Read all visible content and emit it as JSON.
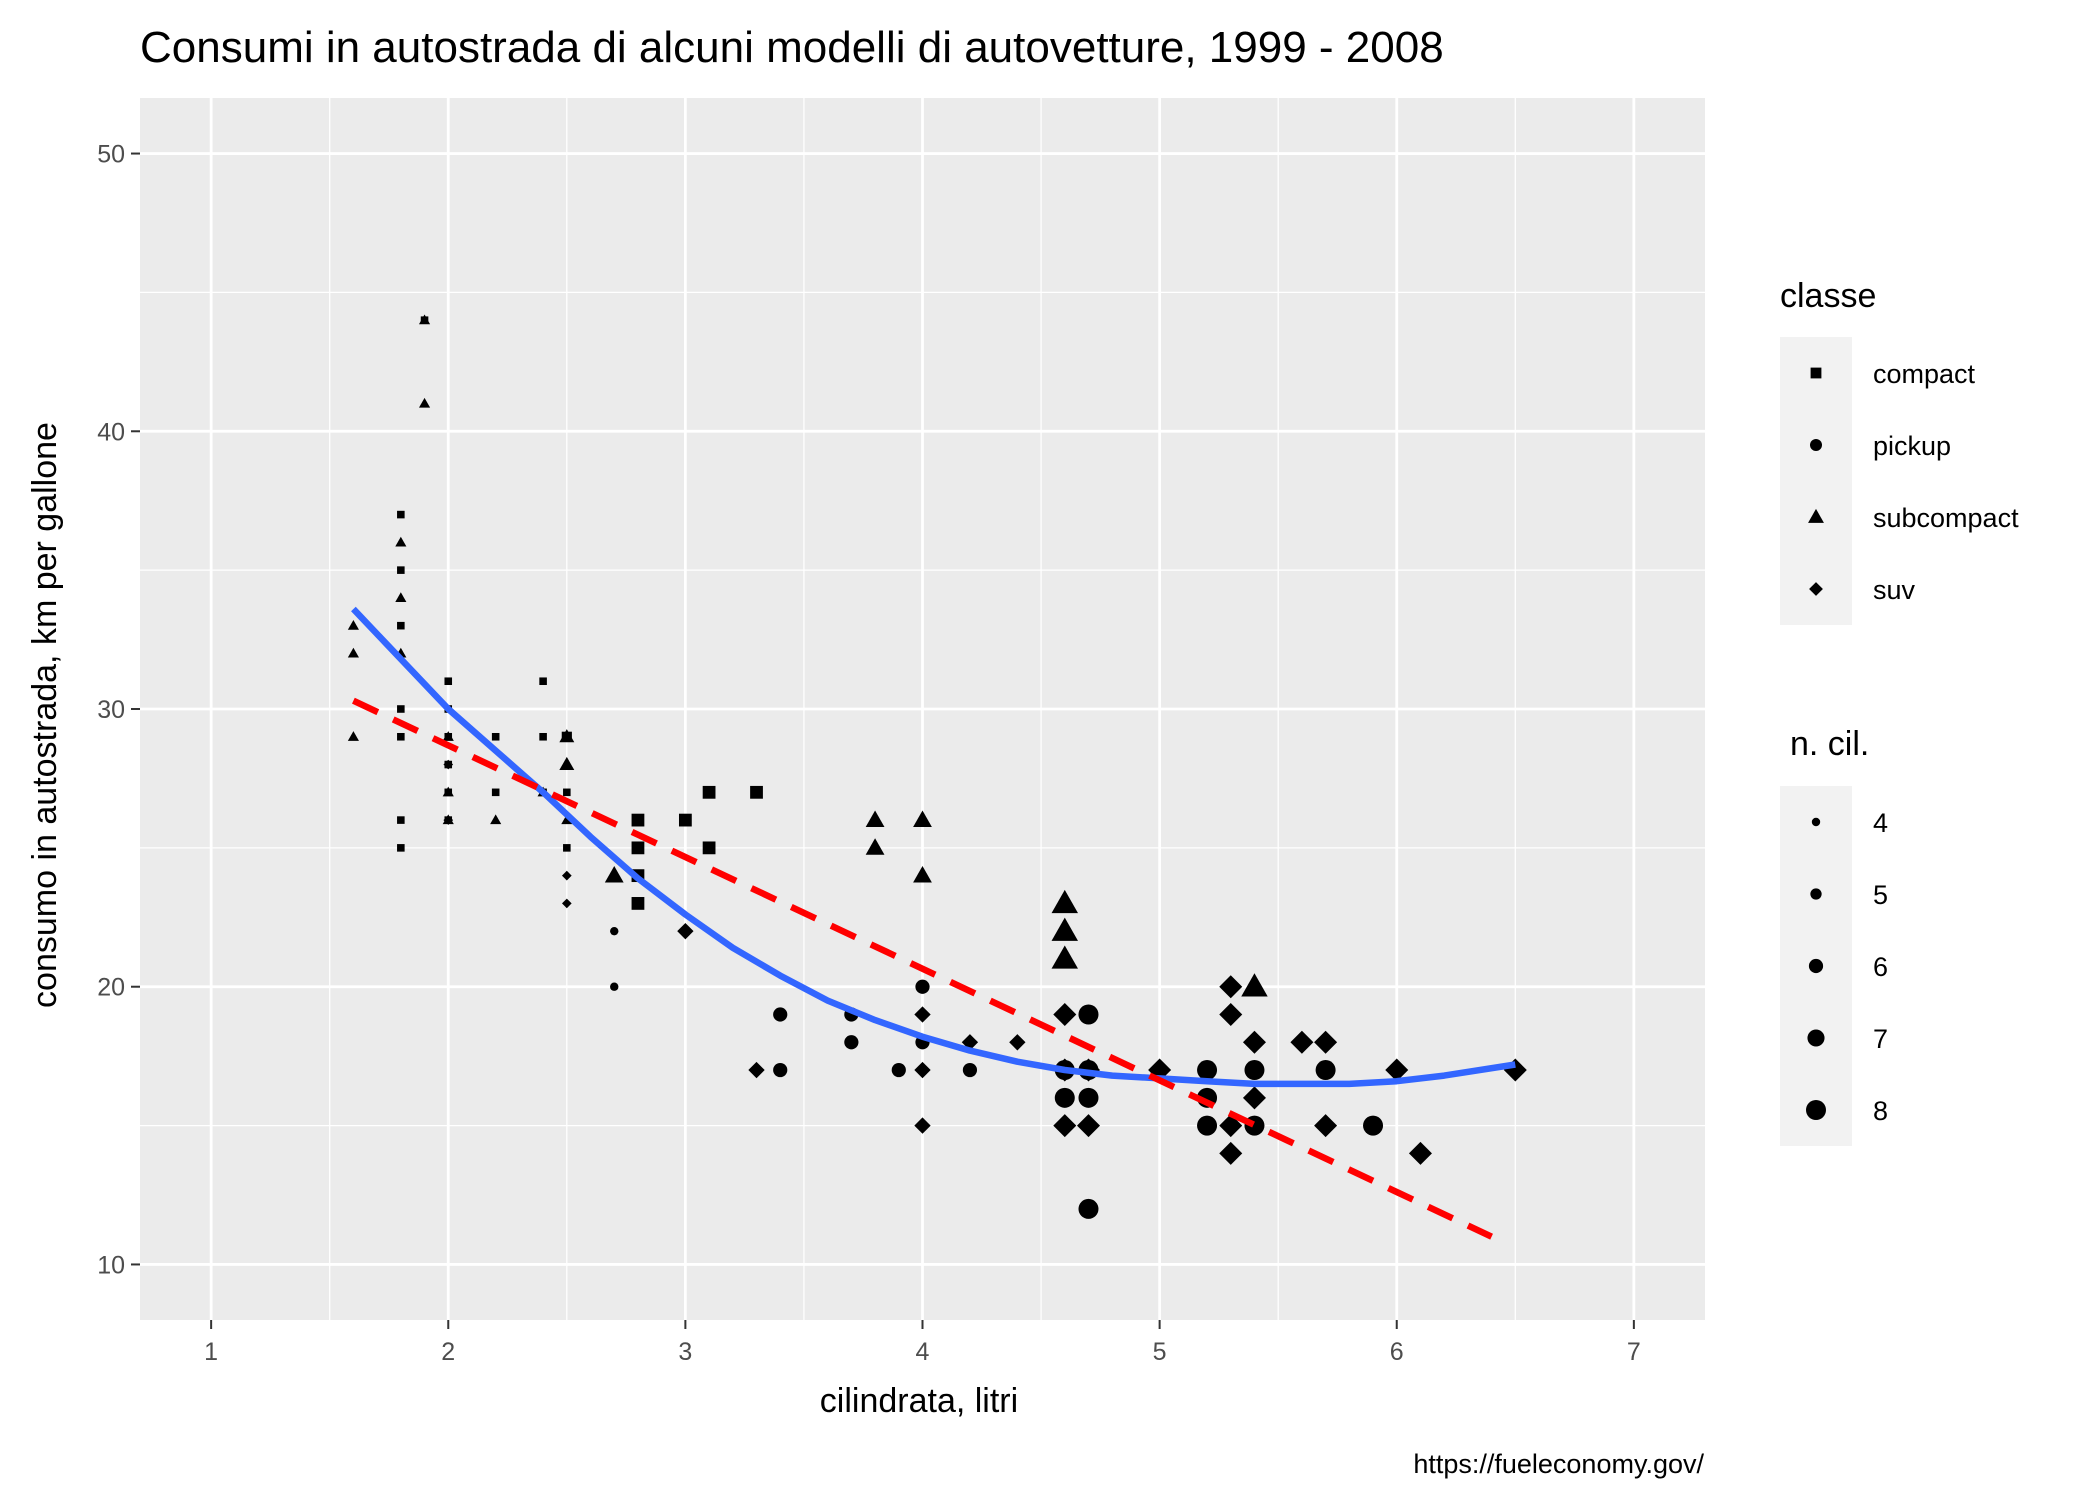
{
  "chart_data": {
    "type": "scatter",
    "title": "Consumi in autostrada di alcuni modelli di autovetture, 1999 - 2008",
    "xlabel": "cilindrata, litri",
    "ylabel": "consumo in autostrada, km per gallone",
    "caption": "https://fueleconomy.gov/",
    "xlim": [
      0.7,
      7.3
    ],
    "ylim": [
      8,
      52
    ],
    "x_ticks": [
      1,
      2,
      3,
      4,
      5,
      6,
      7
    ],
    "y_ticks": [
      10,
      20,
      30,
      40,
      50
    ],
    "grid": true,
    "legend_placement": "right",
    "colors": {
      "panel": "#EBEBEB",
      "grid": "#FFFFFF",
      "points": "#000000",
      "loess": "#3366FF",
      "linear": "#FF0000",
      "legend_key_bg": "#F2F2F2"
    },
    "legend_shape": {
      "title": "classe",
      "entries": [
        {
          "label": "compact",
          "shape": "square"
        },
        {
          "label": "pickup",
          "shape": "circle"
        },
        {
          "label": "subcompact",
          "shape": "triangle"
        },
        {
          "label": "suv",
          "shape": "diamond"
        }
      ]
    },
    "legend_size": {
      "title": "n. cil.",
      "entries": [
        {
          "label": "4",
          "cyl": 4
        },
        {
          "label": "5",
          "cyl": 5
        },
        {
          "label": "6",
          "cyl": 6
        },
        {
          "label": "7",
          "cyl": 7
        },
        {
          "label": "8",
          "cyl": 8
        }
      ]
    },
    "points": [
      {
        "x": 1.6,
        "y": 33,
        "cls": "subcompact",
        "cyl": 4
      },
      {
        "x": 1.6,
        "y": 32,
        "cls": "subcompact",
        "cyl": 4
      },
      {
        "x": 1.6,
        "y": 29,
        "cls": "subcompact",
        "cyl": 4
      },
      {
        "x": 1.8,
        "y": 37,
        "cls": "compact",
        "cyl": 4
      },
      {
        "x": 1.8,
        "y": 35,
        "cls": "compact",
        "cyl": 4
      },
      {
        "x": 1.8,
        "y": 33,
        "cls": "compact",
        "cyl": 4
      },
      {
        "x": 1.8,
        "y": 30,
        "cls": "compact",
        "cyl": 4
      },
      {
        "x": 1.8,
        "y": 29,
        "cls": "compact",
        "cyl": 4
      },
      {
        "x": 1.8,
        "y": 26,
        "cls": "compact",
        "cyl": 4
      },
      {
        "x": 1.8,
        "y": 25,
        "cls": "compact",
        "cyl": 4
      },
      {
        "x": 1.8,
        "y": 36,
        "cls": "subcompact",
        "cyl": 4
      },
      {
        "x": 1.8,
        "y": 34,
        "cls": "subcompact",
        "cyl": 4
      },
      {
        "x": 1.8,
        "y": 32,
        "cls": "subcompact",
        "cyl": 4
      },
      {
        "x": 1.9,
        "y": 44,
        "cls": "compact",
        "cyl": 4
      },
      {
        "x": 1.9,
        "y": 44,
        "cls": "subcompact",
        "cyl": 4
      },
      {
        "x": 1.9,
        "y": 41,
        "cls": "subcompact",
        "cyl": 4
      },
      {
        "x": 2.0,
        "y": 31,
        "cls": "compact",
        "cyl": 4
      },
      {
        "x": 2.0,
        "y": 30,
        "cls": "compact",
        "cyl": 4
      },
      {
        "x": 2.0,
        "y": 29,
        "cls": "compact",
        "cyl": 4
      },
      {
        "x": 2.0,
        "y": 28,
        "cls": "compact",
        "cyl": 4
      },
      {
        "x": 2.0,
        "y": 27,
        "cls": "compact",
        "cyl": 4
      },
      {
        "x": 2.0,
        "y": 26,
        "cls": "compact",
        "cyl": 4
      },
      {
        "x": 2.0,
        "y": 29,
        "cls": "subcompact",
        "cyl": 4
      },
      {
        "x": 2.0,
        "y": 27,
        "cls": "subcompact",
        "cyl": 4
      },
      {
        "x": 2.0,
        "y": 26,
        "cls": "subcompact",
        "cyl": 4
      },
      {
        "x": 2.0,
        "y": 28,
        "cls": "suv",
        "cyl": 4
      },
      {
        "x": 2.0,
        "y": 26,
        "cls": "suv",
        "cyl": 4
      },
      {
        "x": 2.2,
        "y": 29,
        "cls": "compact",
        "cyl": 4
      },
      {
        "x": 2.2,
        "y": 27,
        "cls": "compact",
        "cyl": 4
      },
      {
        "x": 2.2,
        "y": 26,
        "cls": "subcompact",
        "cyl": 4
      },
      {
        "x": 2.4,
        "y": 31,
        "cls": "compact",
        "cyl": 4
      },
      {
        "x": 2.4,
        "y": 29,
        "cls": "compact",
        "cyl": 4
      },
      {
        "x": 2.4,
        "y": 27,
        "cls": "compact",
        "cyl": 4
      },
      {
        "x": 2.4,
        "y": 27,
        "cls": "subcompact",
        "cyl": 4
      },
      {
        "x": 2.5,
        "y": 29,
        "cls": "compact",
        "cyl": 5
      },
      {
        "x": 2.5,
        "y": 27,
        "cls": "compact",
        "cyl": 4
      },
      {
        "x": 2.5,
        "y": 25,
        "cls": "compact",
        "cyl": 4
      },
      {
        "x": 2.5,
        "y": 29,
        "cls": "subcompact",
        "cyl": 5
      },
      {
        "x": 2.5,
        "y": 28,
        "cls": "subcompact",
        "cyl": 5
      },
      {
        "x": 2.5,
        "y": 26,
        "cls": "subcompact",
        "cyl": 4
      },
      {
        "x": 2.5,
        "y": 24,
        "cls": "suv",
        "cyl": 4
      },
      {
        "x": 2.5,
        "y": 23,
        "cls": "suv",
        "cyl": 4
      },
      {
        "x": 2.7,
        "y": 22,
        "cls": "pickup",
        "cyl": 4
      },
      {
        "x": 2.7,
        "y": 20,
        "cls": "pickup",
        "cyl": 4
      },
      {
        "x": 2.7,
        "y": 24,
        "cls": "subcompact",
        "cyl": 6
      },
      {
        "x": 2.8,
        "y": 26,
        "cls": "compact",
        "cyl": 6
      },
      {
        "x": 2.8,
        "y": 25,
        "cls": "compact",
        "cyl": 6
      },
      {
        "x": 2.8,
        "y": 24,
        "cls": "compact",
        "cyl": 6
      },
      {
        "x": 2.8,
        "y": 23,
        "cls": "compact",
        "cyl": 6
      },
      {
        "x": 3.0,
        "y": 26,
        "cls": "compact",
        "cyl": 6
      },
      {
        "x": 3.0,
        "y": 22,
        "cls": "suv",
        "cyl": 6
      },
      {
        "x": 3.1,
        "y": 27,
        "cls": "compact",
        "cyl": 6
      },
      {
        "x": 3.1,
        "y": 25,
        "cls": "compact",
        "cyl": 6
      },
      {
        "x": 3.3,
        "y": 27,
        "cls": "compact",
        "cyl": 6
      },
      {
        "x": 3.3,
        "y": 17,
        "cls": "suv",
        "cyl": 6
      },
      {
        "x": 3.4,
        "y": 19,
        "cls": "pickup",
        "cyl": 6
      },
      {
        "x": 3.4,
        "y": 17,
        "cls": "pickup",
        "cyl": 6
      },
      {
        "x": 3.7,
        "y": 19,
        "cls": "pickup",
        "cyl": 6
      },
      {
        "x": 3.7,
        "y": 18,
        "cls": "pickup",
        "cyl": 6
      },
      {
        "x": 3.8,
        "y": 26,
        "cls": "subcompact",
        "cyl": 6
      },
      {
        "x": 3.8,
        "y": 25,
        "cls": "subcompact",
        "cyl": 6
      },
      {
        "x": 3.9,
        "y": 17,
        "cls": "pickup",
        "cyl": 6
      },
      {
        "x": 4.0,
        "y": 20,
        "cls": "pickup",
        "cyl": 6
      },
      {
        "x": 4.0,
        "y": 18,
        "cls": "pickup",
        "cyl": 6
      },
      {
        "x": 4.0,
        "y": 26,
        "cls": "subcompact",
        "cyl": 6
      },
      {
        "x": 4.0,
        "y": 24,
        "cls": "subcompact",
        "cyl": 6
      },
      {
        "x": 4.0,
        "y": 19,
        "cls": "suv",
        "cyl": 6
      },
      {
        "x": 4.0,
        "y": 17,
        "cls": "suv",
        "cyl": 6
      },
      {
        "x": 4.0,
        "y": 15,
        "cls": "suv",
        "cyl": 6
      },
      {
        "x": 4.2,
        "y": 17,
        "cls": "pickup",
        "cyl": 6
      },
      {
        "x": 4.2,
        "y": 18,
        "cls": "suv",
        "cyl": 6
      },
      {
        "x": 4.4,
        "y": 18,
        "cls": "suv",
        "cyl": 6
      },
      {
        "x": 4.6,
        "y": 17,
        "cls": "pickup",
        "cyl": 8
      },
      {
        "x": 4.6,
        "y": 16,
        "cls": "pickup",
        "cyl": 8
      },
      {
        "x": 4.6,
        "y": 23,
        "cls": "subcompact",
        "cyl": 8
      },
      {
        "x": 4.6,
        "y": 22,
        "cls": "subcompact",
        "cyl": 8
      },
      {
        "x": 4.6,
        "y": 21,
        "cls": "subcompact",
        "cyl": 8
      },
      {
        "x": 4.6,
        "y": 19,
        "cls": "suv",
        "cyl": 8
      },
      {
        "x": 4.6,
        "y": 17,
        "cls": "suv",
        "cyl": 8
      },
      {
        "x": 4.6,
        "y": 15,
        "cls": "suv",
        "cyl": 8
      },
      {
        "x": 4.7,
        "y": 19,
        "cls": "pickup",
        "cyl": 8
      },
      {
        "x": 4.7,
        "y": 17,
        "cls": "pickup",
        "cyl": 8
      },
      {
        "x": 4.7,
        "y": 16,
        "cls": "pickup",
        "cyl": 8
      },
      {
        "x": 4.7,
        "y": 12,
        "cls": "pickup",
        "cyl": 8
      },
      {
        "x": 4.7,
        "y": 17,
        "cls": "suv",
        "cyl": 8
      },
      {
        "x": 4.7,
        "y": 15,
        "cls": "suv",
        "cyl": 8
      },
      {
        "x": 5.0,
        "y": 17,
        "cls": "suv",
        "cyl": 8
      },
      {
        "x": 5.2,
        "y": 17,
        "cls": "pickup",
        "cyl": 8
      },
      {
        "x": 5.2,
        "y": 16,
        "cls": "pickup",
        "cyl": 8
      },
      {
        "x": 5.2,
        "y": 15,
        "cls": "pickup",
        "cyl": 8
      },
      {
        "x": 5.3,
        "y": 20,
        "cls": "suv",
        "cyl": 8
      },
      {
        "x": 5.3,
        "y": 19,
        "cls": "suv",
        "cyl": 8
      },
      {
        "x": 5.3,
        "y": 15,
        "cls": "suv",
        "cyl": 8
      },
      {
        "x": 5.3,
        "y": 14,
        "cls": "suv",
        "cyl": 8
      },
      {
        "x": 5.4,
        "y": 17,
        "cls": "pickup",
        "cyl": 8
      },
      {
        "x": 5.4,
        "y": 15,
        "cls": "pickup",
        "cyl": 8
      },
      {
        "x": 5.4,
        "y": 20,
        "cls": "subcompact",
        "cyl": 8
      },
      {
        "x": 5.4,
        "y": 18,
        "cls": "suv",
        "cyl": 8
      },
      {
        "x": 5.4,
        "y": 16,
        "cls": "suv",
        "cyl": 8
      },
      {
        "x": 5.6,
        "y": 18,
        "cls": "suv",
        "cyl": 8
      },
      {
        "x": 5.7,
        "y": 17,
        "cls": "pickup",
        "cyl": 8
      },
      {
        "x": 5.7,
        "y": 18,
        "cls": "suv",
        "cyl": 8
      },
      {
        "x": 5.7,
        "y": 15,
        "cls": "suv",
        "cyl": 8
      },
      {
        "x": 5.9,
        "y": 15,
        "cls": "pickup",
        "cyl": 8
      },
      {
        "x": 6.0,
        "y": 17,
        "cls": "suv",
        "cyl": 8
      },
      {
        "x": 6.1,
        "y": 14,
        "cls": "suv",
        "cyl": 8
      },
      {
        "x": 6.5,
        "y": 17,
        "cls": "suv",
        "cyl": 8
      }
    ],
    "lines": [
      {
        "kind": "loess",
        "color": "#3366FF",
        "dashed": false,
        "x": [
          1.6,
          1.8,
          2.0,
          2.2,
          2.4,
          2.6,
          2.8,
          3.0,
          3.2,
          3.4,
          3.6,
          3.8,
          4.0,
          4.2,
          4.4,
          4.6,
          4.8,
          5.0,
          5.2,
          5.4,
          5.6,
          5.8,
          6.0,
          6.2,
          6.5
        ],
        "y": [
          33.6,
          31.8,
          30.0,
          28.5,
          27.0,
          25.4,
          23.9,
          22.6,
          21.4,
          20.4,
          19.5,
          18.8,
          18.2,
          17.7,
          17.3,
          17.0,
          16.8,
          16.7,
          16.6,
          16.5,
          16.5,
          16.5,
          16.6,
          16.8,
          17.2
        ]
      },
      {
        "kind": "linear",
        "color": "#FF0000",
        "dashed": true,
        "x": [
          1.6,
          6.4
        ],
        "y": [
          30.3,
          11.0
        ]
      }
    ]
  }
}
